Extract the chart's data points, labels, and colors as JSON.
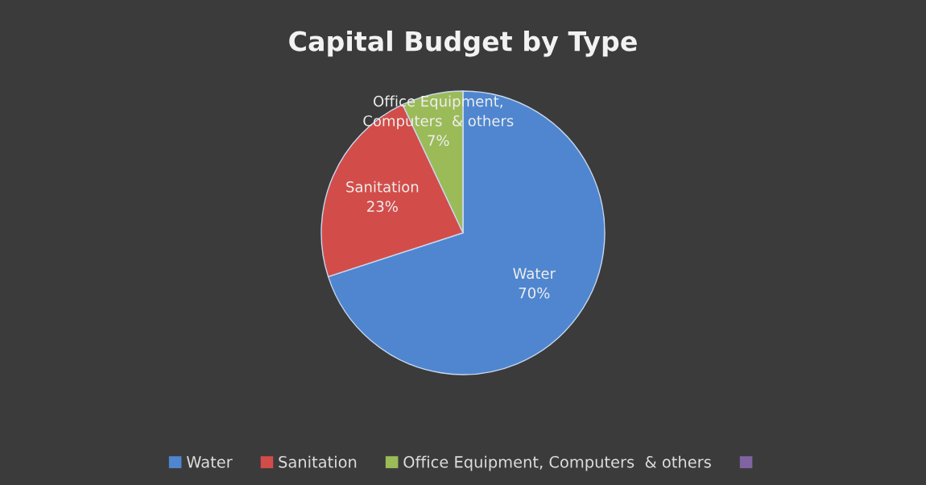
{
  "chart_data": {
    "type": "pie",
    "title": "Capital Budget by Type",
    "categories": [
      "Water",
      "Sanitation",
      "Office Equipment, Computers  & others",
      null
    ],
    "values": [
      70,
      23,
      7,
      0
    ],
    "colors": [
      "#4f86cf",
      "#d24d49",
      "#9bbb59",
      "#8064a2"
    ],
    "value_labels": [
      "Water\n70%",
      "Sanitation\n23%",
      "Office Equipment,\nComputers  & others\n7%",
      null
    ],
    "legend": "bottom"
  }
}
